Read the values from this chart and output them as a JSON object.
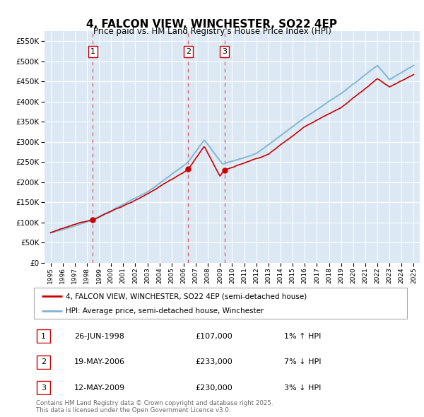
{
  "title": "4, FALCON VIEW, WINCHESTER, SO22 4EP",
  "subtitle": "Price paid vs. HM Land Registry's House Price Index (HPI)",
  "property_label": "4, FALCON VIEW, WINCHESTER, SO22 4EP (semi-detached house)",
  "hpi_label": "HPI: Average price, semi-detached house, Winchester",
  "property_color": "#cc0000",
  "hpi_color": "#7fb3d3",
  "background_color": "#dce9f5",
  "sales": [
    {
      "num": 1,
      "date_x": 1998.49,
      "price": 107000,
      "label": "26-JUN-1998",
      "pct": "1%",
      "dir": "↑"
    },
    {
      "num": 2,
      "date_x": 2006.38,
      "price": 233000,
      "label": "19-MAY-2006",
      "pct": "7%",
      "dir": "↓"
    },
    {
      "num": 3,
      "date_x": 2009.37,
      "price": 230000,
      "label": "12-MAY-2009",
      "pct": "3%",
      "dir": "↓"
    }
  ],
  "yticks": [
    0,
    50000,
    100000,
    150000,
    200000,
    250000,
    300000,
    350000,
    400000,
    450000,
    500000,
    550000
  ],
  "ylim": [
    0,
    575000
  ],
  "xlim": [
    1994.5,
    2025.5
  ],
  "footer": "Contains HM Land Registry data © Crown copyright and database right 2025.\nThis data is licensed under the Open Government Licence v3.0."
}
